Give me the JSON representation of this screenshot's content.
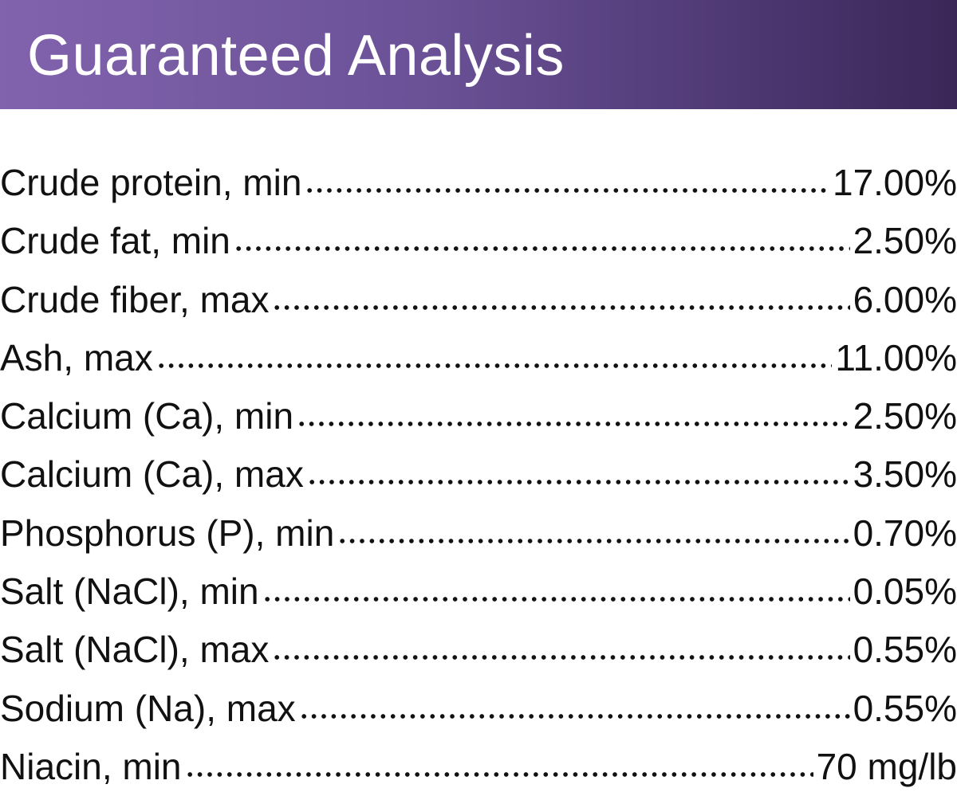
{
  "header": {
    "title": "Guaranteed Analysis",
    "background_colors": [
      "#8163ad",
      "#3b2757"
    ]
  },
  "rows": [
    {
      "label": "Crude protein, min",
      "value": "17.00%"
    },
    {
      "label": "Crude fat, min",
      "value": "2.50%"
    },
    {
      "label": "Crude fiber, max",
      "value": "6.00%"
    },
    {
      "label": "Ash, max",
      "value": "11.00%"
    },
    {
      "label": "Calcium (Ca), min",
      "value": "2.50%"
    },
    {
      "label": "Calcium (Ca), max",
      "value": "3.50%"
    },
    {
      "label": "Phosphorus (P), min",
      "value": "0.70%"
    },
    {
      "label": "Salt (NaCl), min",
      "value": "0.05%"
    },
    {
      "label": "Salt (NaCl), max",
      "value": "0.55%"
    },
    {
      "label": "Sodium (Na), max",
      "value": "0.55%"
    },
    {
      "label": "Niacin, min",
      "value": "70 mg/lb"
    }
  ]
}
